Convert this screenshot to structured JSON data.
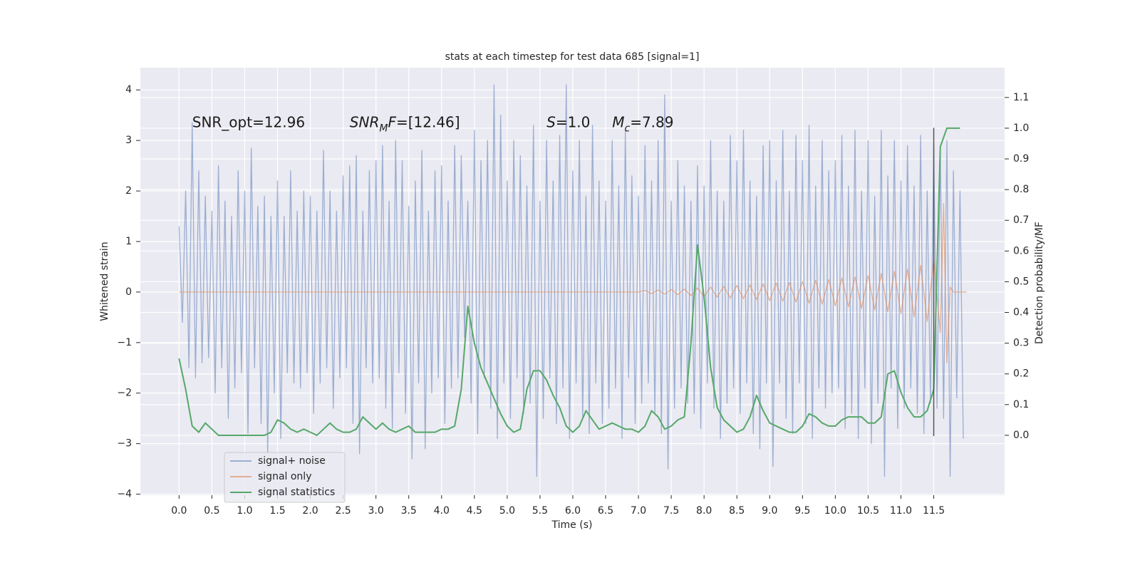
{
  "chart_data": {
    "type": "line",
    "title": "stats at each timestep for test data 685 [signal=1]",
    "xlabel": "Time (s)",
    "ylabel": "Whitened strain",
    "y2label": "Detection probability/MF",
    "xlim": [
      -0.59,
      12.58
    ],
    "ylim": [
      -4.02,
      4.44
    ],
    "y2lim": [
      -0.195,
      1.197
    ],
    "xticks": [
      {
        "value": 0,
        "label": "0.0"
      },
      0.5,
      {
        "value": 1,
        "label": "1.0"
      },
      1.5,
      {
        "value": 2,
        "label": "2.0"
      },
      2.5,
      {
        "value": 3,
        "label": "3.0"
      },
      3.5,
      {
        "value": 4,
        "label": "4.0"
      },
      4.5,
      {
        "value": 5,
        "label": "5.0"
      },
      5.5,
      {
        "value": 6,
        "label": "6.0"
      },
      6.5,
      {
        "value": 7,
        "label": "7.0"
      },
      7.5,
      {
        "value": 8,
        "label": "8.0"
      },
      8.5,
      {
        "value": 9,
        "label": "9.0"
      },
      9.5,
      {
        "value": 10,
        "label": "10.0"
      },
      10.5,
      {
        "value": 11,
        "label": "11.0"
      },
      11.5
    ],
    "yticks": [
      {
        "value": -4,
        "label": "−4"
      },
      {
        "value": -3,
        "label": "−3"
      },
      {
        "value": -2,
        "label": "−2"
      },
      {
        "value": -1,
        "label": "−1"
      },
      0,
      1,
      2,
      3,
      4
    ],
    "y2ticks": [
      {
        "value": 0,
        "label": "0.0"
      },
      0.1,
      0.2,
      0.3,
      0.4,
      0.5,
      0.6,
      0.7,
      0.8,
      0.9,
      {
        "value": 1,
        "label": "1.0"
      },
      1.1
    ],
    "grid": true,
    "legend": "lower left",
    "series": [
      {
        "name": "signal+ noise",
        "color": "#4c72b0",
        "opacity": 0.5,
        "axis": "y",
        "x": [
          0,
          0.05,
          0.1,
          0.15,
          0.2,
          0.25,
          0.3,
          0.35,
          0.4,
          0.45,
          0.5,
          0.55,
          0.6,
          0.65,
          0.7,
          0.75,
          0.8,
          0.85,
          0.9,
          0.95,
          1,
          1.05,
          1.1,
          1.15,
          1.2,
          1.25,
          1.3,
          1.35,
          1.4,
          1.45,
          1.5,
          1.55,
          1.6,
          1.65,
          1.7,
          1.75,
          1.8,
          1.85,
          1.9,
          1.95,
          2,
          2.05,
          2.1,
          2.15,
          2.2,
          2.25,
          2.3,
          2.35,
          2.4,
          2.45,
          2.5,
          2.55,
          2.6,
          2.65,
          2.7,
          2.75,
          2.8,
          2.85,
          2.9,
          2.95,
          3,
          3.05,
          3.1,
          3.15,
          3.2,
          3.25,
          3.3,
          3.35,
          3.4,
          3.45,
          3.5,
          3.55,
          3.6,
          3.65,
          3.7,
          3.75,
          3.8,
          3.85,
          3.9,
          3.95,
          4,
          4.05,
          4.1,
          4.15,
          4.2,
          4.25,
          4.3,
          4.35,
          4.4,
          4.45,
          4.5,
          4.55,
          4.6,
          4.65,
          4.7,
          4.75,
          4.8,
          4.85,
          4.9,
          4.95,
          5,
          5.05,
          5.1,
          5.15,
          5.2,
          5.25,
          5.3,
          5.35,
          5.4,
          5.45,
          5.5,
          5.55,
          5.6,
          5.65,
          5.7,
          5.75,
          5.8,
          5.85,
          5.9,
          5.95,
          6,
          6.05,
          6.1,
          6.15,
          6.2,
          6.25,
          6.3,
          6.35,
          6.4,
          6.45,
          6.5,
          6.55,
          6.6,
          6.65,
          6.7,
          6.75,
          6.8,
          6.85,
          6.9,
          6.95,
          7,
          7.05,
          7.1,
          7.15,
          7.2,
          7.25,
          7.3,
          7.35,
          7.4,
          7.45,
          7.5,
          7.55,
          7.6,
          7.65,
          7.7,
          7.75,
          7.8,
          7.85,
          7.9,
          7.95,
          8,
          8.05,
          8.1,
          8.15,
          8.2,
          8.25,
          8.3,
          8.35,
          8.4,
          8.45,
          8.5,
          8.55,
          8.6,
          8.65,
          8.7,
          8.75,
          8.8,
          8.85,
          8.9,
          8.95,
          9,
          9.05,
          9.1,
          9.15,
          9.2,
          9.25,
          9.3,
          9.35,
          9.4,
          9.45,
          9.5,
          9.55,
          9.6,
          9.65,
          9.7,
          9.75,
          9.8,
          9.85,
          9.9,
          9.95,
          10,
          10.05,
          10.1,
          10.15,
          10.2,
          10.25,
          10.3,
          10.35,
          10.4,
          10.45,
          10.5,
          10.55,
          10.6,
          10.65,
          10.7,
          10.75,
          10.8,
          10.85,
          10.9,
          10.95,
          11,
          11.05,
          11.1,
          11.15,
          11.2,
          11.25,
          11.3,
          11.35,
          11.4,
          11.45,
          11.5,
          11.55,
          11.6,
          11.65,
          11.7,
          11.75,
          11.8,
          11.85,
          11.9,
          11.95
        ],
        "values": [
          1.3,
          -0.6,
          2.0,
          -1.5,
          3.35,
          -1.7,
          2.4,
          -1.4,
          1.9,
          -1.3,
          1.6,
          -2.0,
          2.5,
          -1.5,
          1.8,
          -2.5,
          1.5,
          -1.9,
          2.4,
          -1.6,
          2.0,
          -2.8,
          2.85,
          -1.5,
          1.7,
          -2.6,
          1.9,
          -3.2,
          1.5,
          -2.0,
          2.2,
          -2.9,
          1.5,
          -1.6,
          2.4,
          -1.8,
          1.6,
          -1.9,
          2.0,
          -1.6,
          1.9,
          -2.4,
          1.6,
          -1.8,
          2.8,
          -1.5,
          2.0,
          -2.3,
          1.6,
          -1.7,
          2.3,
          -1.5,
          2.5,
          -2.6,
          2.7,
          -3.2,
          1.6,
          -1.5,
          2.4,
          -1.8,
          2.6,
          -1.7,
          2.9,
          -2.3,
          1.8,
          -2.7,
          3.0,
          -1.6,
          2.6,
          -2.4,
          1.7,
          -3.3,
          2.2,
          -1.8,
          2.8,
          -3.1,
          1.6,
          -2.0,
          2.4,
          -1.7,
          2.5,
          -2.6,
          1.8,
          -1.9,
          2.9,
          -1.7,
          2.7,
          -0.9,
          1.8,
          -2.2,
          3.2,
          -2.8,
          2.6,
          -1.7,
          3.0,
          -2.3,
          4.1,
          -2.9,
          3.5,
          -1.8,
          2.2,
          -2.5,
          3.0,
          -1.7,
          2.7,
          -2.4,
          2.1,
          -2.2,
          3.3,
          -3.65,
          1.8,
          -2.5,
          3.0,
          -1.7,
          2.2,
          -2.6,
          3.1,
          -1.9,
          4.1,
          -2.9,
          2.4,
          -1.8,
          3.0,
          -2.5,
          1.9,
          -2.8,
          3.3,
          -1.8,
          2.2,
          -2.6,
          1.8,
          -2.3,
          3.0,
          -1.9,
          2.1,
          -2.9,
          3.2,
          -1.7,
          2.3,
          -2.6,
          1.9,
          -2.2,
          2.9,
          -1.8,
          2.2,
          -2.4,
          3.0,
          -2.8,
          3.9,
          -3.5,
          1.8,
          -2.3,
          2.6,
          -1.9,
          2.1,
          -2.2,
          1.8,
          -2.4,
          2.5,
          -2.7,
          2.1,
          -1.8,
          3.0,
          -2.3,
          2.0,
          -2.9,
          1.8,
          -2.2,
          3.1,
          -1.9,
          2.6,
          -2.4,
          3.2,
          -1.8,
          2.2,
          -2.8,
          1.9,
          -3.1,
          2.9,
          -1.8,
          3.0,
          -3.45,
          2.2,
          -1.8,
          3.2,
          -2.5,
          2.0,
          -2.8,
          3.1,
          -1.8,
          2.6,
          -2.6,
          3.3,
          -2.9,
          2.1,
          -1.9,
          3.0,
          -2.3,
          2.4,
          -2.0,
          2.6,
          -1.9,
          3.1,
          -2.7,
          2.1,
          -2.4,
          3.2,
          -2.9,
          2.0,
          -1.9,
          3.0,
          -3.0,
          1.9,
          -2.2,
          3.2,
          -3.65,
          2.3,
          -1.9,
          3.0,
          -2.7,
          2.2,
          -2.3,
          2.9,
          -1.9,
          2.1,
          -2.4,
          3.1,
          -2.8,
          2.0,
          -2.2,
          2.9,
          -2.3,
          2.8,
          -2.5,
          3.0,
          -3.65,
          2.4,
          -2.1,
          2.0,
          -2.9
        ]
      },
      {
        "name": "signal only",
        "color": "#dd8452",
        "opacity": 0.6,
        "axis": "y",
        "x": [
          0,
          1,
          2,
          3,
          4,
          5,
          6,
          7,
          7.1,
          7.2,
          7.3,
          7.4,
          7.5,
          7.6,
          7.7,
          7.8,
          7.9,
          8,
          8.1,
          8.2,
          8.3,
          8.4,
          8.5,
          8.6,
          8.7,
          8.8,
          8.9,
          9,
          9.1,
          9.2,
          9.3,
          9.4,
          9.5,
          9.6,
          9.7,
          9.8,
          9.9,
          10,
          10.1,
          10.2,
          10.3,
          10.4,
          10.5,
          10.6,
          10.7,
          10.8,
          10.9,
          11,
          11.1,
          11.2,
          11.3,
          11.4,
          11.5,
          11.6,
          11.65,
          11.7,
          11.75,
          11.8,
          12
        ],
        "values": [
          0,
          0,
          0,
          0,
          0,
          0,
          0,
          0,
          0.03,
          -0.03,
          0.04,
          -0.04,
          0.05,
          -0.05,
          0.06,
          -0.07,
          0.08,
          -0.09,
          0.1,
          -0.1,
          0.11,
          -0.12,
          0.13,
          -0.13,
          0.14,
          -0.15,
          0.16,
          -0.17,
          0.18,
          -0.18,
          0.19,
          -0.2,
          0.21,
          -0.22,
          0.23,
          -0.24,
          0.25,
          -0.27,
          0.28,
          -0.29,
          0.3,
          -0.32,
          0.33,
          -0.35,
          0.37,
          -0.39,
          0.41,
          -0.43,
          0.46,
          -0.49,
          0.53,
          -0.58,
          0.65,
          -0.8,
          1.75,
          -1.4,
          0.1,
          0,
          0
        ]
      },
      {
        "name": "signal statistics",
        "color": "#55a868",
        "opacity": 1,
        "axis": "y2",
        "x": [
          0,
          0.1,
          0.2,
          0.3,
          0.4,
          0.5,
          0.6,
          0.7,
          0.8,
          0.9,
          1,
          1.1,
          1.2,
          1.3,
          1.4,
          1.5,
          1.6,
          1.7,
          1.8,
          1.9,
          2,
          2.1,
          2.2,
          2.3,
          2.4,
          2.5,
          2.6,
          2.7,
          2.8,
          2.9,
          3,
          3.1,
          3.2,
          3.3,
          3.4,
          3.5,
          3.6,
          3.7,
          3.8,
          3.9,
          4,
          4.1,
          4.2,
          4.3,
          4.4,
          4.5,
          4.6,
          4.7,
          4.8,
          4.9,
          5,
          5.1,
          5.2,
          5.3,
          5.4,
          5.5,
          5.6,
          5.7,
          5.8,
          5.9,
          6,
          6.1,
          6.2,
          6.3,
          6.4,
          6.5,
          6.6,
          6.7,
          6.8,
          6.9,
          7,
          7.1,
          7.2,
          7.3,
          7.4,
          7.5,
          7.6,
          7.7,
          7.8,
          7.9,
          8,
          8.1,
          8.2,
          8.3,
          8.4,
          8.5,
          8.6,
          8.7,
          8.8,
          8.9,
          9,
          9.1,
          9.2,
          9.3,
          9.4,
          9.5,
          9.6,
          9.7,
          9.8,
          9.9,
          10,
          10.1,
          10.2,
          10.3,
          10.4,
          10.5,
          10.6,
          10.7,
          10.8,
          10.9,
          11,
          11.1,
          11.2,
          11.3,
          11.4,
          11.5,
          11.6,
          11.7,
          11.8,
          11.9
        ],
        "values": [
          0.25,
          0.15,
          0.03,
          0.01,
          0.04,
          0.02,
          0.0,
          0.0,
          0.0,
          0.0,
          0.0,
          0.0,
          0.0,
          0.0,
          0.01,
          0.05,
          0.04,
          0.02,
          0.01,
          0.02,
          0.01,
          0.0,
          0.02,
          0.04,
          0.02,
          0.01,
          0.01,
          0.02,
          0.06,
          0.04,
          0.02,
          0.04,
          0.02,
          0.01,
          0.02,
          0.03,
          0.01,
          0.01,
          0.01,
          0.01,
          0.02,
          0.02,
          0.03,
          0.15,
          0.42,
          0.3,
          0.22,
          0.17,
          0.12,
          0.07,
          0.03,
          0.01,
          0.02,
          0.15,
          0.21,
          0.21,
          0.18,
          0.13,
          0.09,
          0.03,
          0.01,
          0.03,
          0.08,
          0.05,
          0.02,
          0.03,
          0.04,
          0.03,
          0.02,
          0.02,
          0.01,
          0.03,
          0.08,
          0.06,
          0.02,
          0.03,
          0.05,
          0.06,
          0.3,
          0.62,
          0.45,
          0.22,
          0.09,
          0.05,
          0.03,
          0.01,
          0.02,
          0.06,
          0.13,
          0.08,
          0.04,
          0.03,
          0.02,
          0.01,
          0.01,
          0.03,
          0.07,
          0.06,
          0.04,
          0.03,
          0.03,
          0.05,
          0.06,
          0.06,
          0.06,
          0.04,
          0.04,
          0.06,
          0.2,
          0.21,
          0.14,
          0.09,
          0.06,
          0.06,
          0.08,
          0.15,
          0.94,
          1.0,
          1.0,
          1.0
        ]
      }
    ],
    "vline": {
      "x": 11.5,
      "ymin": -2.85,
      "ymax": 3.25,
      "color": "#555555"
    },
    "annotations": [
      {
        "x": 0.2,
        "y": 3.35,
        "parts": [
          {
            "text": "SNR_opt=12.96"
          }
        ]
      },
      {
        "x": 2.6,
        "y": 3.35,
        "parts": [
          {
            "text": "SNR",
            "italic": true
          },
          {
            "text": "M",
            "italic": true,
            "sub": true
          },
          {
            "text": "F",
            "italic": true
          },
          {
            "text": "=[12.46]"
          }
        ]
      },
      {
        "x": 5.6,
        "y": 3.35,
        "parts": [
          {
            "text": "S",
            "italic": true
          },
          {
            "text": "=1.0"
          }
        ]
      },
      {
        "x": 6.6,
        "y": 3.35,
        "parts": [
          {
            "text": "M",
            "italic": true
          },
          {
            "text": "c",
            "italic": true,
            "sub": true
          },
          {
            "text": "=7.89"
          }
        ]
      }
    ]
  }
}
